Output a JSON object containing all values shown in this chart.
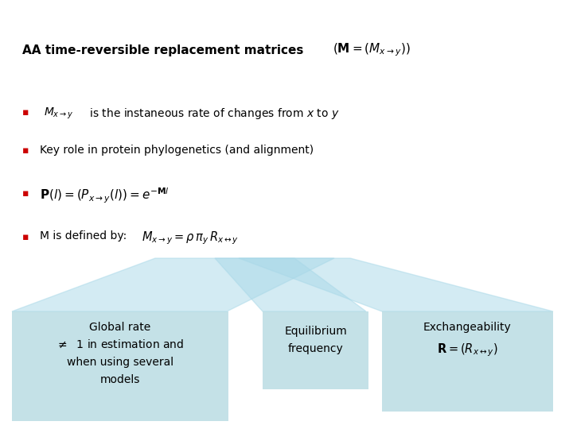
{
  "title_text": "AA time-reversible replacement matrices",
  "title_formula": "$\\left(\\mathbf{M} = \\left(M_{x \\rightarrow y}\\right)\\right)$",
  "bullet_color": "#cc0000",
  "box_color": "#b0d8e0",
  "bg_color": "#ffffff",
  "text_color": "#000000",
  "bullet1_formula": "$M_{x \\rightarrow y}$",
  "bullet1_text": " is the instaneous rate of changes from $x$ to $y$",
  "bullet2_text": "Key role in protein phylogenetics (and alignment)",
  "bullet3_formula": "$\\mathbf{P}(l)=\\left(P_{x \\rightarrow y}(l)\\right)=e^{-\\mathbf{M}l}$",
  "bullet4_text": "M is defined by:",
  "bullet4_formula": "$M_{x \\rightarrow y} = \\rho\\,\\pi_y\\,R_{x \\leftrightarrow y}$",
  "box1_line1": "Global rate",
  "box1_line2": "$\\neq$  1 in estimation and",
  "box1_line3": "when using several",
  "box1_line4": "models",
  "box2_line1": "Equilibrium",
  "box2_line2": "frequency",
  "box3_line1": "Exchangeability",
  "box3_formula": "$\\mathbf{R}=\\left(R_{x \\leftrightarrow y}\\right)$",
  "fan_color": "#a8d8e8",
  "fan_alpha": 0.5
}
